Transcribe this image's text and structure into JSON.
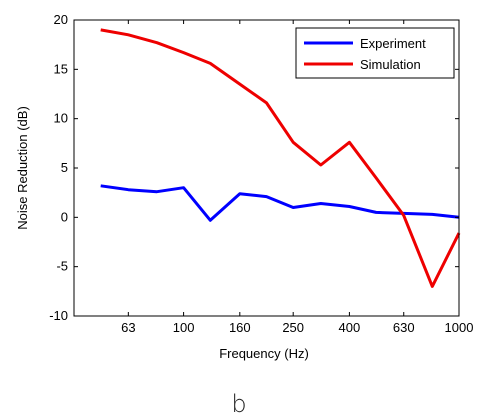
{
  "chart_data": {
    "type": "line",
    "xlabel": "Frequency (Hz)",
    "ylabel": "Noise Reduction (dB)",
    "x_scale": "log",
    "xlim": [
      40,
      1000
    ],
    "ylim": [
      -10,
      20
    ],
    "x_ticks": [
      63,
      100,
      160,
      250,
      400,
      630,
      1000
    ],
    "x_tick_labels": [
      "63",
      "100",
      "160",
      "250",
      "400",
      "630",
      "1000"
    ],
    "y_ticks": [
      -10,
      -5,
      0,
      5,
      10,
      15,
      20
    ],
    "y_tick_labels": [
      "-10",
      "-5",
      "0",
      "5",
      "10",
      "15",
      "20"
    ],
    "grid": false,
    "legend_position": "top-right",
    "series": [
      {
        "name": "Experiment",
        "color": "#0000ff",
        "x": [
          50,
          63,
          80,
          100,
          125,
          160,
          200,
          250,
          315,
          400,
          500,
          630,
          800,
          1000
        ],
        "y": [
          3.2,
          2.8,
          2.6,
          3.0,
          -0.3,
          2.4,
          2.1,
          1.0,
          1.4,
          1.1,
          0.5,
          0.4,
          0.3,
          0.0
        ]
      },
      {
        "name": "Simulation",
        "color": "#ee0000",
        "x": [
          50,
          63,
          80,
          100,
          125,
          160,
          200,
          250,
          315,
          400,
          500,
          630,
          800,
          1000
        ],
        "y": [
          19.0,
          18.5,
          17.7,
          16.7,
          15.6,
          13.5,
          11.6,
          7.6,
          5.3,
          7.6,
          4.0,
          0.2,
          -7.0,
          -1.6
        ]
      }
    ]
  },
  "figure_label": "b"
}
